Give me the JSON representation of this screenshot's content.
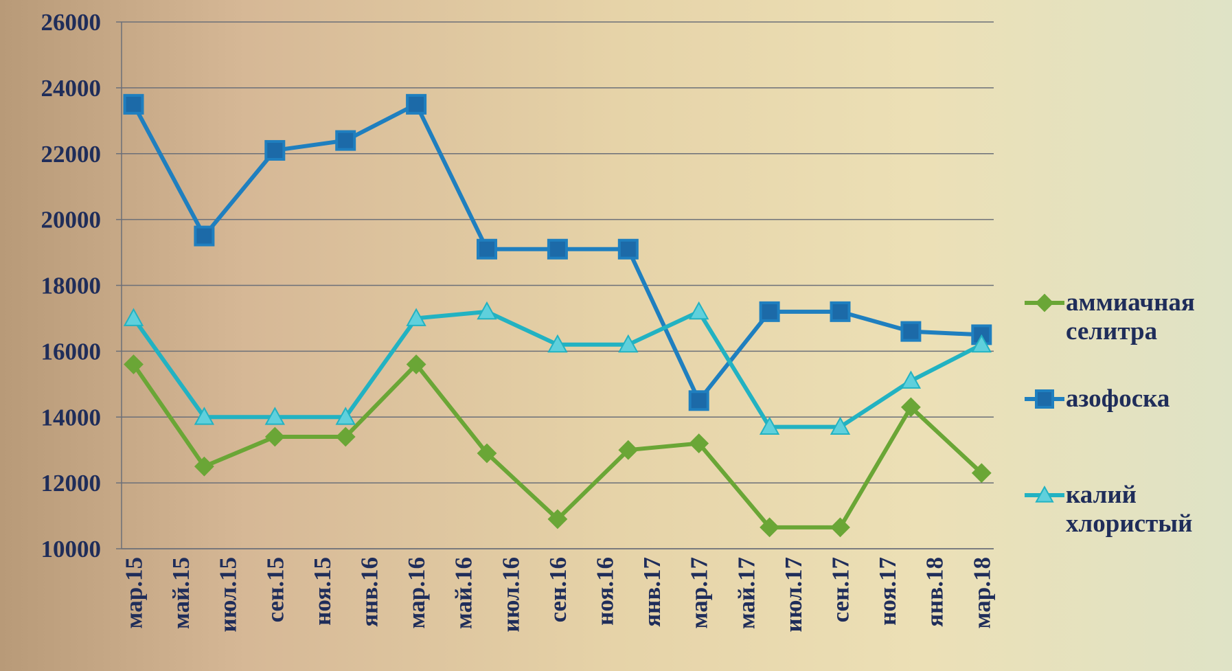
{
  "chart_data": {
    "type": "line",
    "categories": [
      "мар.15",
      "май.15",
      "июл.15",
      "сен.15",
      "ноя.15",
      "янв.16",
      "мар.16",
      "май.16",
      "июл.16",
      "сен.16",
      "ноя.16",
      "янв.17",
      "мар.17",
      "май.17",
      "июл.17",
      "сен.17",
      "ноя.17",
      "янв.18",
      "мар.18"
    ],
    "x": [
      0,
      1.5,
      3,
      4.5,
      6,
      7.5,
      9,
      10.5,
      12,
      13.5,
      15,
      16.5,
      18
    ],
    "series": [
      {
        "name": "аммиачная селитра",
        "color": "#6aa636",
        "marker": "diamond",
        "values": [
          15600,
          12500,
          13400,
          13400,
          15600,
          12900,
          10900,
          13000,
          13200,
          10650,
          10650,
          14300,
          12300
        ]
      },
      {
        "name": "азофоска",
        "color": "#1f7fbf",
        "marker": "square",
        "values": [
          23500,
          19500,
          22100,
          22400,
          23500,
          19100,
          19100,
          19100,
          14500,
          17200,
          17200,
          16600,
          16500
        ]
      },
      {
        "name": "калий хлористый",
        "color": "#22b2c2",
        "marker": "triangle",
        "values": [
          17000,
          14000,
          14000,
          14000,
          17000,
          17200,
          16200,
          16200,
          17200,
          13700,
          13700,
          15100,
          16200
        ]
      }
    ],
    "ylim": [
      10000,
      26000
    ],
    "yticks": [
      10000,
      12000,
      14000,
      16000,
      18000,
      20000,
      22000,
      24000,
      26000
    ],
    "grid": true,
    "legend": "right"
  }
}
